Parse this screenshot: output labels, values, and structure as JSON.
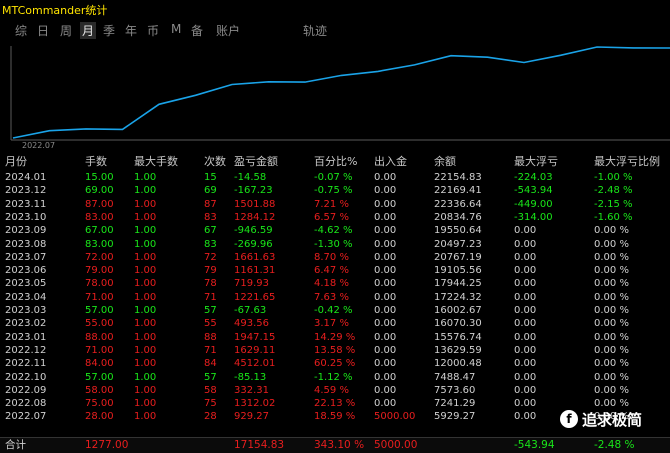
{
  "app": {
    "title": "MTCommander统计"
  },
  "tabs": [
    {
      "label": "综",
      "active": false
    },
    {
      "label": "日",
      "active": false
    },
    {
      "label": "周",
      "active": false
    },
    {
      "label": "月",
      "active": true
    },
    {
      "label": "季",
      "active": false
    },
    {
      "label": "年",
      "active": false
    },
    {
      "label": "币",
      "active": false
    },
    {
      "label": "M",
      "active": false
    },
    {
      "label": "备",
      "active": false
    },
    {
      "label": "账户",
      "active": false
    },
    {
      "label": "轨迹",
      "active": false
    }
  ],
  "chart_data": {
    "type": "line",
    "x_start_label": "2022.07",
    "color": "#1aa3e8",
    "x": [
      "2022.07",
      "2022.08",
      "2022.09",
      "2022.10",
      "2022.11",
      "2022.12",
      "2023.01",
      "2023.02",
      "2023.03",
      "2023.04",
      "2023.05",
      "2023.06",
      "2023.07",
      "2023.08",
      "2023.09",
      "2023.10",
      "2023.11",
      "2023.12",
      "2024.01"
    ],
    "values": [
      5929.27,
      7241.29,
      7573.6,
      7488.47,
      12000.48,
      13629.59,
      15576.74,
      16070.3,
      16002.67,
      17224.32,
      17944.25,
      19105.56,
      20767.19,
      20497.23,
      19550.64,
      20834.76,
      22336.64,
      22169.41,
      22154.83
    ]
  },
  "table": {
    "headers": [
      "月份",
      "手数",
      "最大手数",
      "次数",
      "盈亏金额",
      "百分比%",
      "出入金",
      "余额",
      "最大浮亏",
      "最大浮亏比例"
    ],
    "rows": [
      [
        "2024.01",
        "15.00",
        "1.00",
        "15",
        "-14.58",
        "-0.07 %",
        "0.00",
        "22154.83",
        "-224.03",
        "-1.00 %",
        "neg",
        "neg"
      ],
      [
        "2023.12",
        "69.00",
        "1.00",
        "69",
        "-167.23",
        "-0.75 %",
        "0.00",
        "22169.41",
        "-543.94",
        "-2.48 %",
        "neg",
        "neg"
      ],
      [
        "2023.11",
        "87.00",
        "1.00",
        "87",
        "1501.88",
        "7.21 %",
        "0.00",
        "22336.64",
        "-449.00",
        "-2.15 %",
        "pos",
        "neg"
      ],
      [
        "2023.10",
        "83.00",
        "1.00",
        "83",
        "1284.12",
        "6.57 %",
        "0.00",
        "20834.76",
        "-314.00",
        "-1.60 %",
        "pos",
        "neg"
      ],
      [
        "2023.09",
        "67.00",
        "1.00",
        "67",
        "-946.59",
        "-4.62 %",
        "0.00",
        "19550.64",
        "0.00",
        "0.00 %",
        "neg",
        "zero"
      ],
      [
        "2023.08",
        "83.00",
        "1.00",
        "83",
        "-269.96",
        "-1.30 %",
        "0.00",
        "20497.23",
        "0.00",
        "0.00 %",
        "neg",
        "zero"
      ],
      [
        "2023.07",
        "72.00",
        "1.00",
        "72",
        "1661.63",
        "8.70 %",
        "0.00",
        "20767.19",
        "0.00",
        "0.00 %",
        "pos",
        "zero"
      ],
      [
        "2023.06",
        "79.00",
        "1.00",
        "79",
        "1161.31",
        "6.47 %",
        "0.00",
        "19105.56",
        "0.00",
        "0.00 %",
        "pos",
        "zero"
      ],
      [
        "2023.05",
        "78.00",
        "1.00",
        "78",
        "719.93",
        "4.18 %",
        "0.00",
        "17944.25",
        "0.00",
        "0.00 %",
        "pos",
        "zero"
      ],
      [
        "2023.04",
        "71.00",
        "1.00",
        "71",
        "1221.65",
        "7.63 %",
        "0.00",
        "17224.32",
        "0.00",
        "0.00 %",
        "pos",
        "zero"
      ],
      [
        "2023.03",
        "57.00",
        "1.00",
        "57",
        "-67.63",
        "-0.42 %",
        "0.00",
        "16002.67",
        "0.00",
        "0.00 %",
        "neg",
        "zero"
      ],
      [
        "2023.02",
        "55.00",
        "1.00",
        "55",
        "493.56",
        "3.17 %",
        "0.00",
        "16070.30",
        "0.00",
        "0.00 %",
        "pos",
        "zero"
      ],
      [
        "2023.01",
        "88.00",
        "1.00",
        "88",
        "1947.15",
        "14.29 %",
        "0.00",
        "15576.74",
        "0.00",
        "0.00 %",
        "pos",
        "zero"
      ],
      [
        "2022.12",
        "71.00",
        "1.00",
        "71",
        "1629.11",
        "13.58 %",
        "0.00",
        "13629.59",
        "0.00",
        "0.00 %",
        "pos",
        "zero"
      ],
      [
        "2022.11",
        "84.00",
        "1.00",
        "84",
        "4512.01",
        "60.25 %",
        "0.00",
        "12000.48",
        "0.00",
        "0.00 %",
        "pos",
        "zero"
      ],
      [
        "2022.10",
        "57.00",
        "1.00",
        "57",
        "-85.13",
        "-1.12 %",
        "0.00",
        "7488.47",
        "0.00",
        "0.00 %",
        "neg",
        "zero"
      ],
      [
        "2022.09",
        "58.00",
        "1.00",
        "58",
        "332.31",
        "4.59 %",
        "0.00",
        "7573.60",
        "0.00",
        "0.00 %",
        "pos",
        "zero"
      ],
      [
        "2022.08",
        "75.00",
        "1.00",
        "75",
        "1312.02",
        "22.13 %",
        "0.00",
        "7241.29",
        "0.00",
        "0.00 %",
        "pos",
        "zero"
      ],
      [
        "2022.07",
        "28.00",
        "1.00",
        "28",
        "929.27",
        "18.59 %",
        "5000.00",
        "5929.27",
        "0.00",
        "0.00 %",
        "pos",
        "zero"
      ]
    ],
    "total": {
      "label": "合计",
      "lots": "1277.00",
      "pnl": "17154.83",
      "pct": "343.10 %",
      "deposit": "5000.00",
      "maxdd": "-543.94",
      "maxdd_pct": "-2.48 %"
    }
  },
  "watermark": {
    "icon": "f-logo-icon",
    "glyph": "f",
    "text": "追求极简"
  },
  "colors": {
    "positive": "#e81e1e",
    "negative": "#19e619",
    "line": "#1aa3e8",
    "title": "#ffe400"
  }
}
